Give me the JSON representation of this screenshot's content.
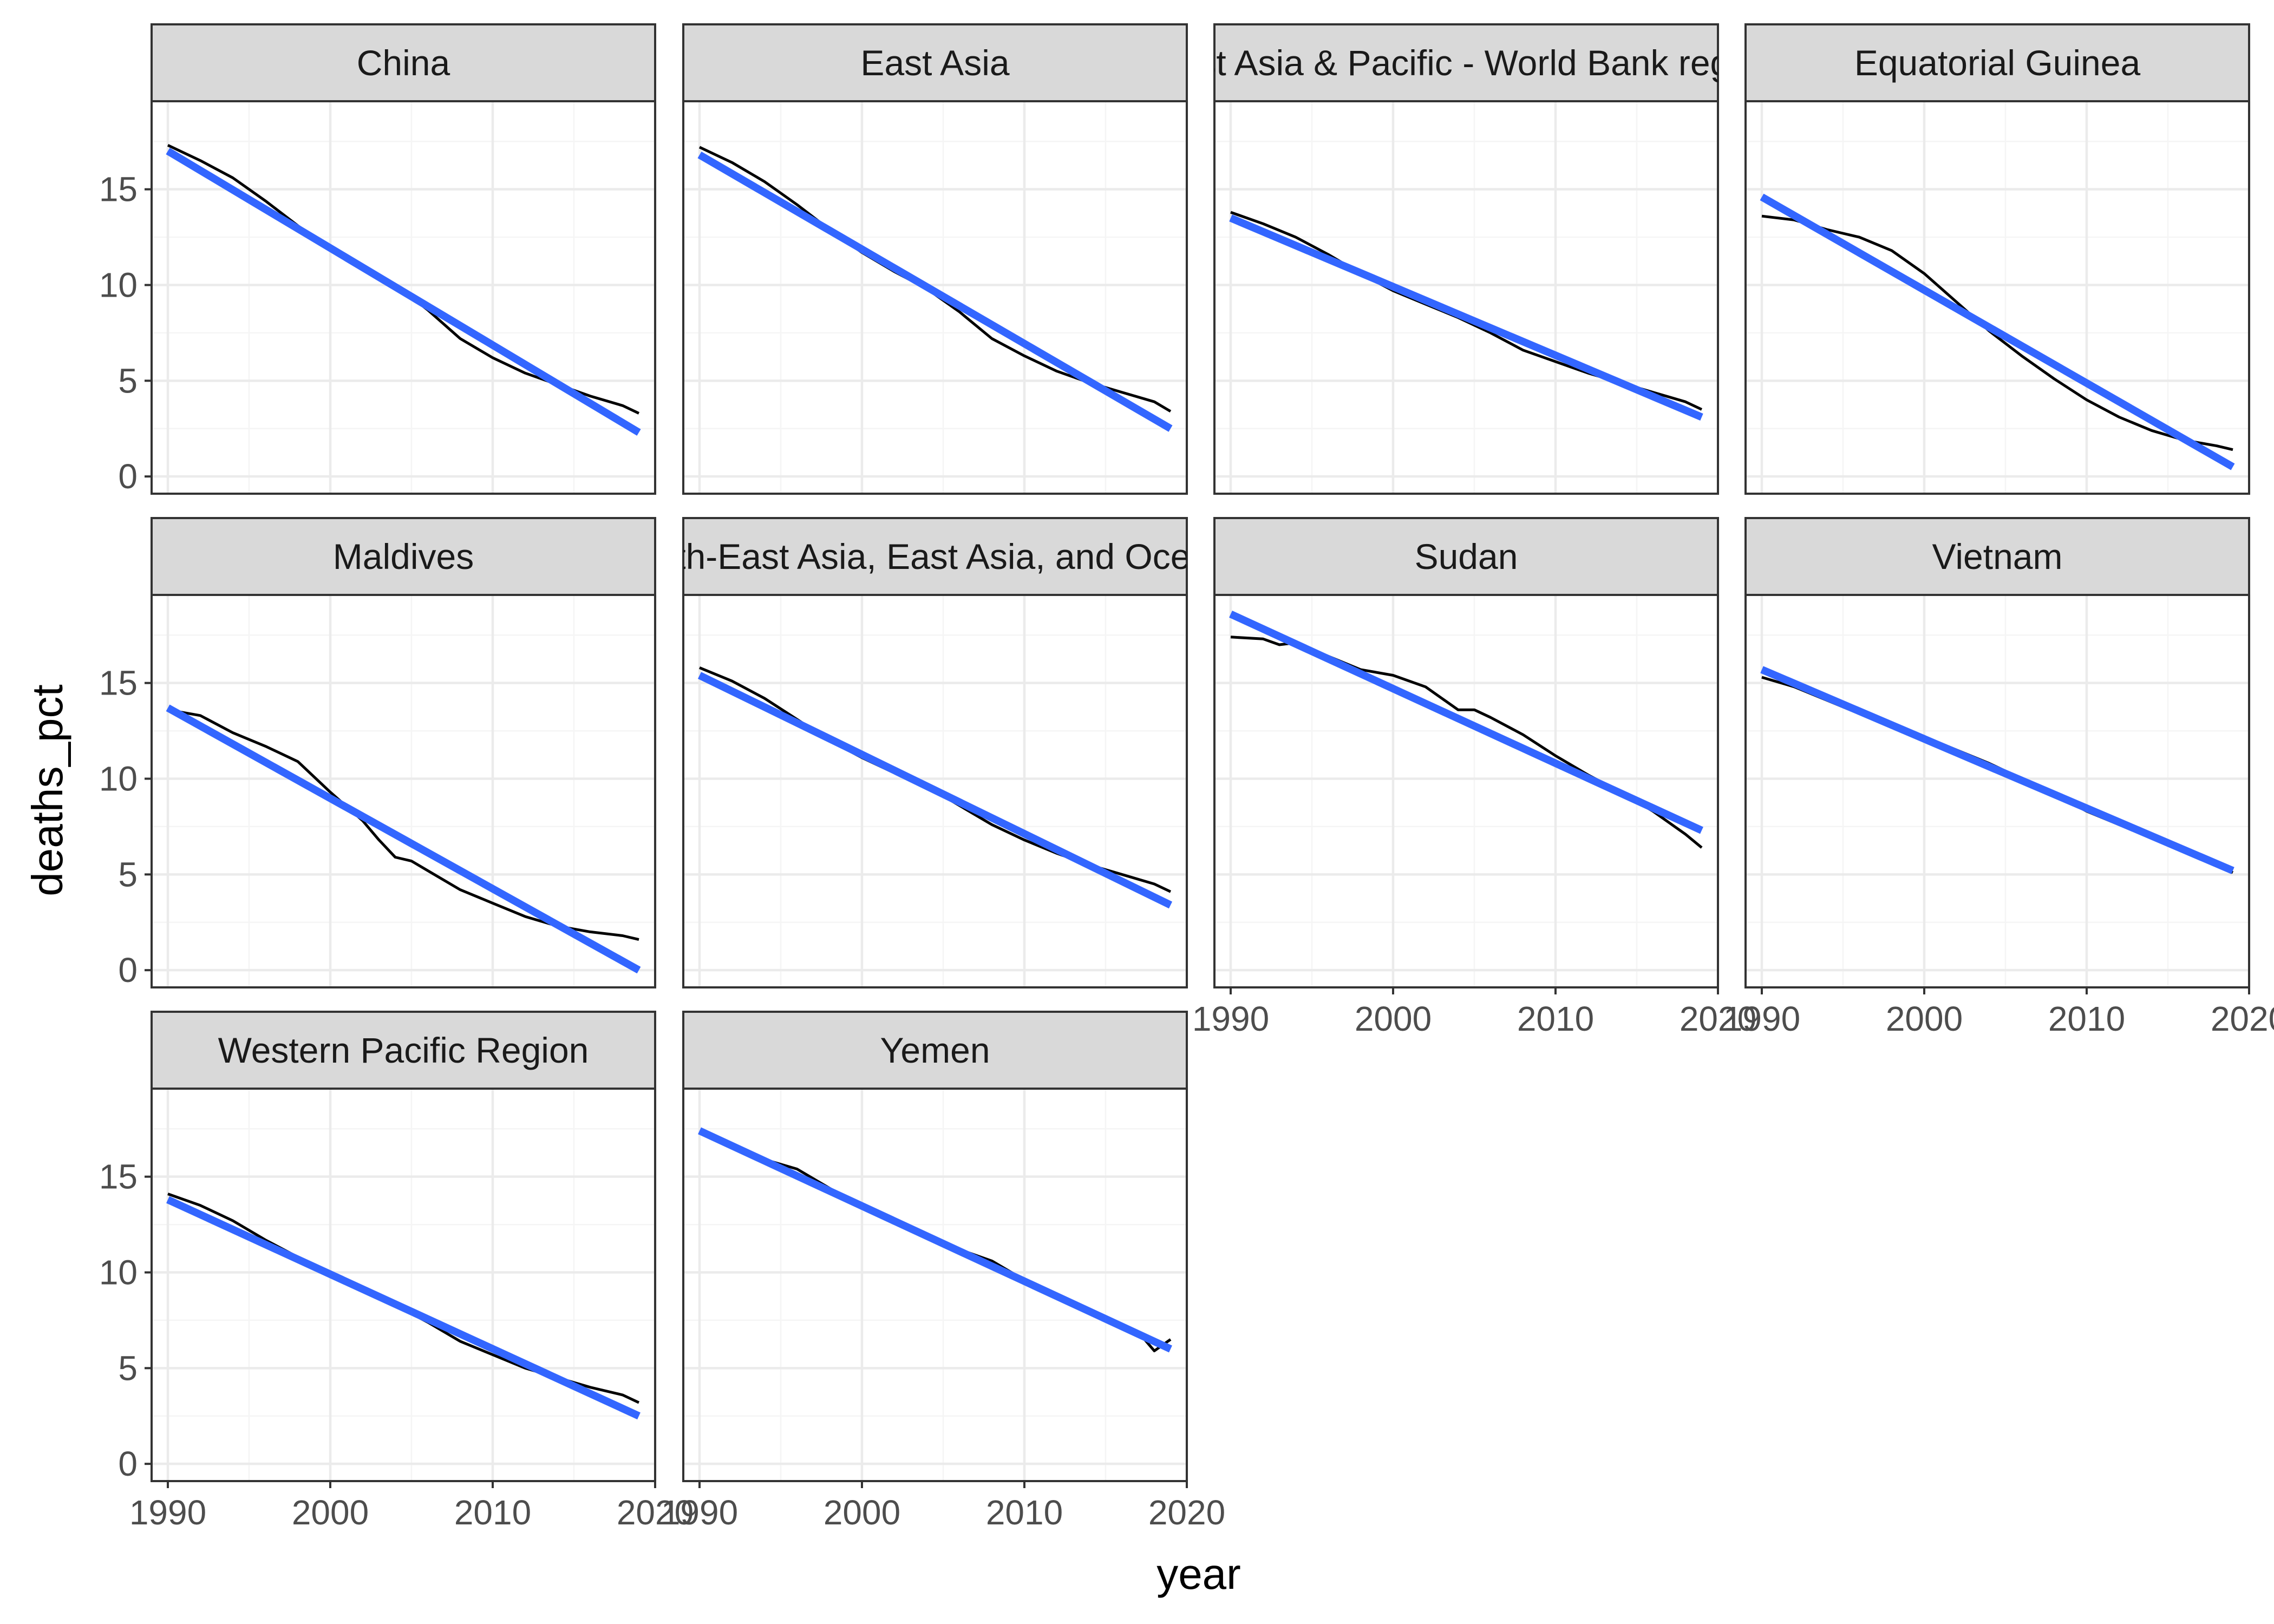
{
  "chart_data": {
    "type": "line",
    "xlabel": "year",
    "ylabel": "deaths_pct",
    "xlim": [
      1989,
      2020
    ],
    "ylim": [
      -0.9,
      19.6
    ],
    "x_ticks": [
      1990,
      2000,
      2010,
      2020
    ],
    "y_ticks": [
      0,
      5,
      10,
      15
    ],
    "x_tick_labels": [
      "1990",
      "2000",
      "2010",
      "2020"
    ],
    "y_tick_labels": [
      "0",
      "5",
      "10",
      "15"
    ],
    "grid": true,
    "theme": "bw",
    "colors": {
      "data_line": "#000000",
      "trend_line": "#3366ff",
      "strip_fill": "#d9d9d9",
      "panel_border": "#333333",
      "grid_major": "#ebebeb",
      "grid_minor": "#f5f5f5"
    },
    "panels": [
      {
        "label": "China",
        "x": [
          1990,
          1992,
          1994,
          1996,
          1998,
          2000,
          2002,
          2004,
          2006,
          2008,
          2010,
          2012,
          2014,
          2016,
          2018,
          2019
        ],
        "values": [
          17.3,
          16.5,
          15.6,
          14.4,
          13.1,
          11.9,
          10.9,
          10.0,
          8.7,
          7.2,
          6.2,
          5.4,
          4.8,
          4.2,
          3.7,
          3.3
        ],
        "trend": [
          17.0,
          2.3
        ]
      },
      {
        "label": "East Asia",
        "x": [
          1990,
          1992,
          1994,
          1996,
          1998,
          2000,
          2002,
          2004,
          2006,
          2008,
          2010,
          2012,
          2014,
          2016,
          2018,
          2019
        ],
        "values": [
          17.2,
          16.4,
          15.4,
          14.2,
          12.9,
          11.7,
          10.7,
          9.8,
          8.6,
          7.2,
          6.3,
          5.5,
          4.9,
          4.4,
          3.9,
          3.4
        ],
        "trend": [
          16.8,
          2.5
        ]
      },
      {
        "label": "East Asia & Pacific - World Bank region",
        "x": [
          1990,
          1992,
          1994,
          1996,
          1998,
          2000,
          2002,
          2004,
          2006,
          2008,
          2010,
          2012,
          2014,
          2016,
          2018,
          2019
        ],
        "values": [
          13.8,
          13.2,
          12.5,
          11.6,
          10.6,
          9.7,
          9.0,
          8.3,
          7.5,
          6.6,
          6.0,
          5.4,
          4.9,
          4.4,
          3.9,
          3.5
        ],
        "trend": [
          13.5,
          3.1
        ]
      },
      {
        "label": "Equatorial Guinea",
        "x": [
          1990,
          1992,
          1994,
          1996,
          1998,
          2000,
          2002,
          2004,
          2006,
          2008,
          2010,
          2012,
          2014,
          2016,
          2018,
          2019
        ],
        "values": [
          13.6,
          13.4,
          12.9,
          12.5,
          11.8,
          10.6,
          9.1,
          7.6,
          6.3,
          5.1,
          4.0,
          3.1,
          2.4,
          1.9,
          1.6,
          1.4
        ],
        "trend": [
          14.6,
          0.5
        ]
      },
      {
        "label": "Maldives",
        "x": [
          1990,
          1992,
          1994,
          1996,
          1998,
          2000,
          2002,
          2003,
          2004,
          2005,
          2006,
          2008,
          2010,
          2012,
          2014,
          2016,
          2018,
          2019
        ],
        "values": [
          13.6,
          13.3,
          12.4,
          11.7,
          10.9,
          9.3,
          7.8,
          6.8,
          5.9,
          5.7,
          5.2,
          4.2,
          3.5,
          2.8,
          2.3,
          2.0,
          1.8,
          1.6
        ],
        "trend": [
          13.7,
          0.0
        ]
      },
      {
        "label": "South-East Asia, East Asia, and Oceania",
        "x": [
          1990,
          1992,
          1994,
          1996,
          1998,
          2000,
          2002,
          2004,
          2006,
          2008,
          2010,
          2012,
          2014,
          2016,
          2018,
          2019
        ],
        "values": [
          15.8,
          15.1,
          14.2,
          13.1,
          12.0,
          11.1,
          10.3,
          9.6,
          8.6,
          7.6,
          6.8,
          6.1,
          5.5,
          5.0,
          4.5,
          4.1
        ],
        "trend": [
          15.4,
          3.4
        ]
      },
      {
        "label": "Sudan",
        "x": [
          1990,
          1992,
          1993,
          1994,
          1996,
          1998,
          2000,
          2002,
          2004,
          2005,
          2006,
          2008,
          2010,
          2012,
          2014,
          2016,
          2018,
          2019
        ],
        "values": [
          17.4,
          17.3,
          17.0,
          17.1,
          16.4,
          15.7,
          15.4,
          14.8,
          13.6,
          13.6,
          13.2,
          12.3,
          11.2,
          10.2,
          9.3,
          8.3,
          7.1,
          6.4
        ],
        "trend": [
          18.6,
          7.3
        ]
      },
      {
        "label": "Vietnam",
        "x": [
          1990,
          1992,
          1994,
          1996,
          1998,
          2000,
          2002,
          2004,
          2006,
          2008,
          2010,
          2012,
          2014,
          2016,
          2018,
          2019
        ],
        "values": [
          15.3,
          14.8,
          14.1,
          13.4,
          12.8,
          12.2,
          11.5,
          10.8,
          10.0,
          9.2,
          8.3,
          7.6,
          6.9,
          6.2,
          5.5,
          5.1
        ],
        "trend": [
          15.7,
          5.2
        ]
      },
      {
        "label": "Western Pacific Region",
        "x": [
          1990,
          1992,
          1994,
          1996,
          1998,
          2000,
          2002,
          2004,
          2006,
          2008,
          2010,
          2012,
          2014,
          2016,
          2018,
          2019
        ],
        "values": [
          14.1,
          13.5,
          12.7,
          11.7,
          10.8,
          9.9,
          9.1,
          8.3,
          7.4,
          6.4,
          5.7,
          5.0,
          4.5,
          4.0,
          3.6,
          3.2
        ],
        "trend": [
          13.8,
          2.5
        ]
      },
      {
        "label": "Yemen",
        "x": [
          1990,
          1992,
          1994,
          1996,
          1998,
          2000,
          2002,
          2004,
          2006,
          2008,
          2010,
          2012,
          2014,
          2016,
          2017,
          2018,
          2019
        ],
        "values": [
          17.3,
          16.5,
          15.9,
          15.4,
          14.4,
          13.4,
          12.6,
          11.8,
          11.2,
          10.6,
          9.6,
          8.8,
          8.0,
          7.3,
          6.9,
          5.9,
          6.5
        ],
        "trend": [
          17.4,
          6.0
        ]
      }
    ]
  }
}
